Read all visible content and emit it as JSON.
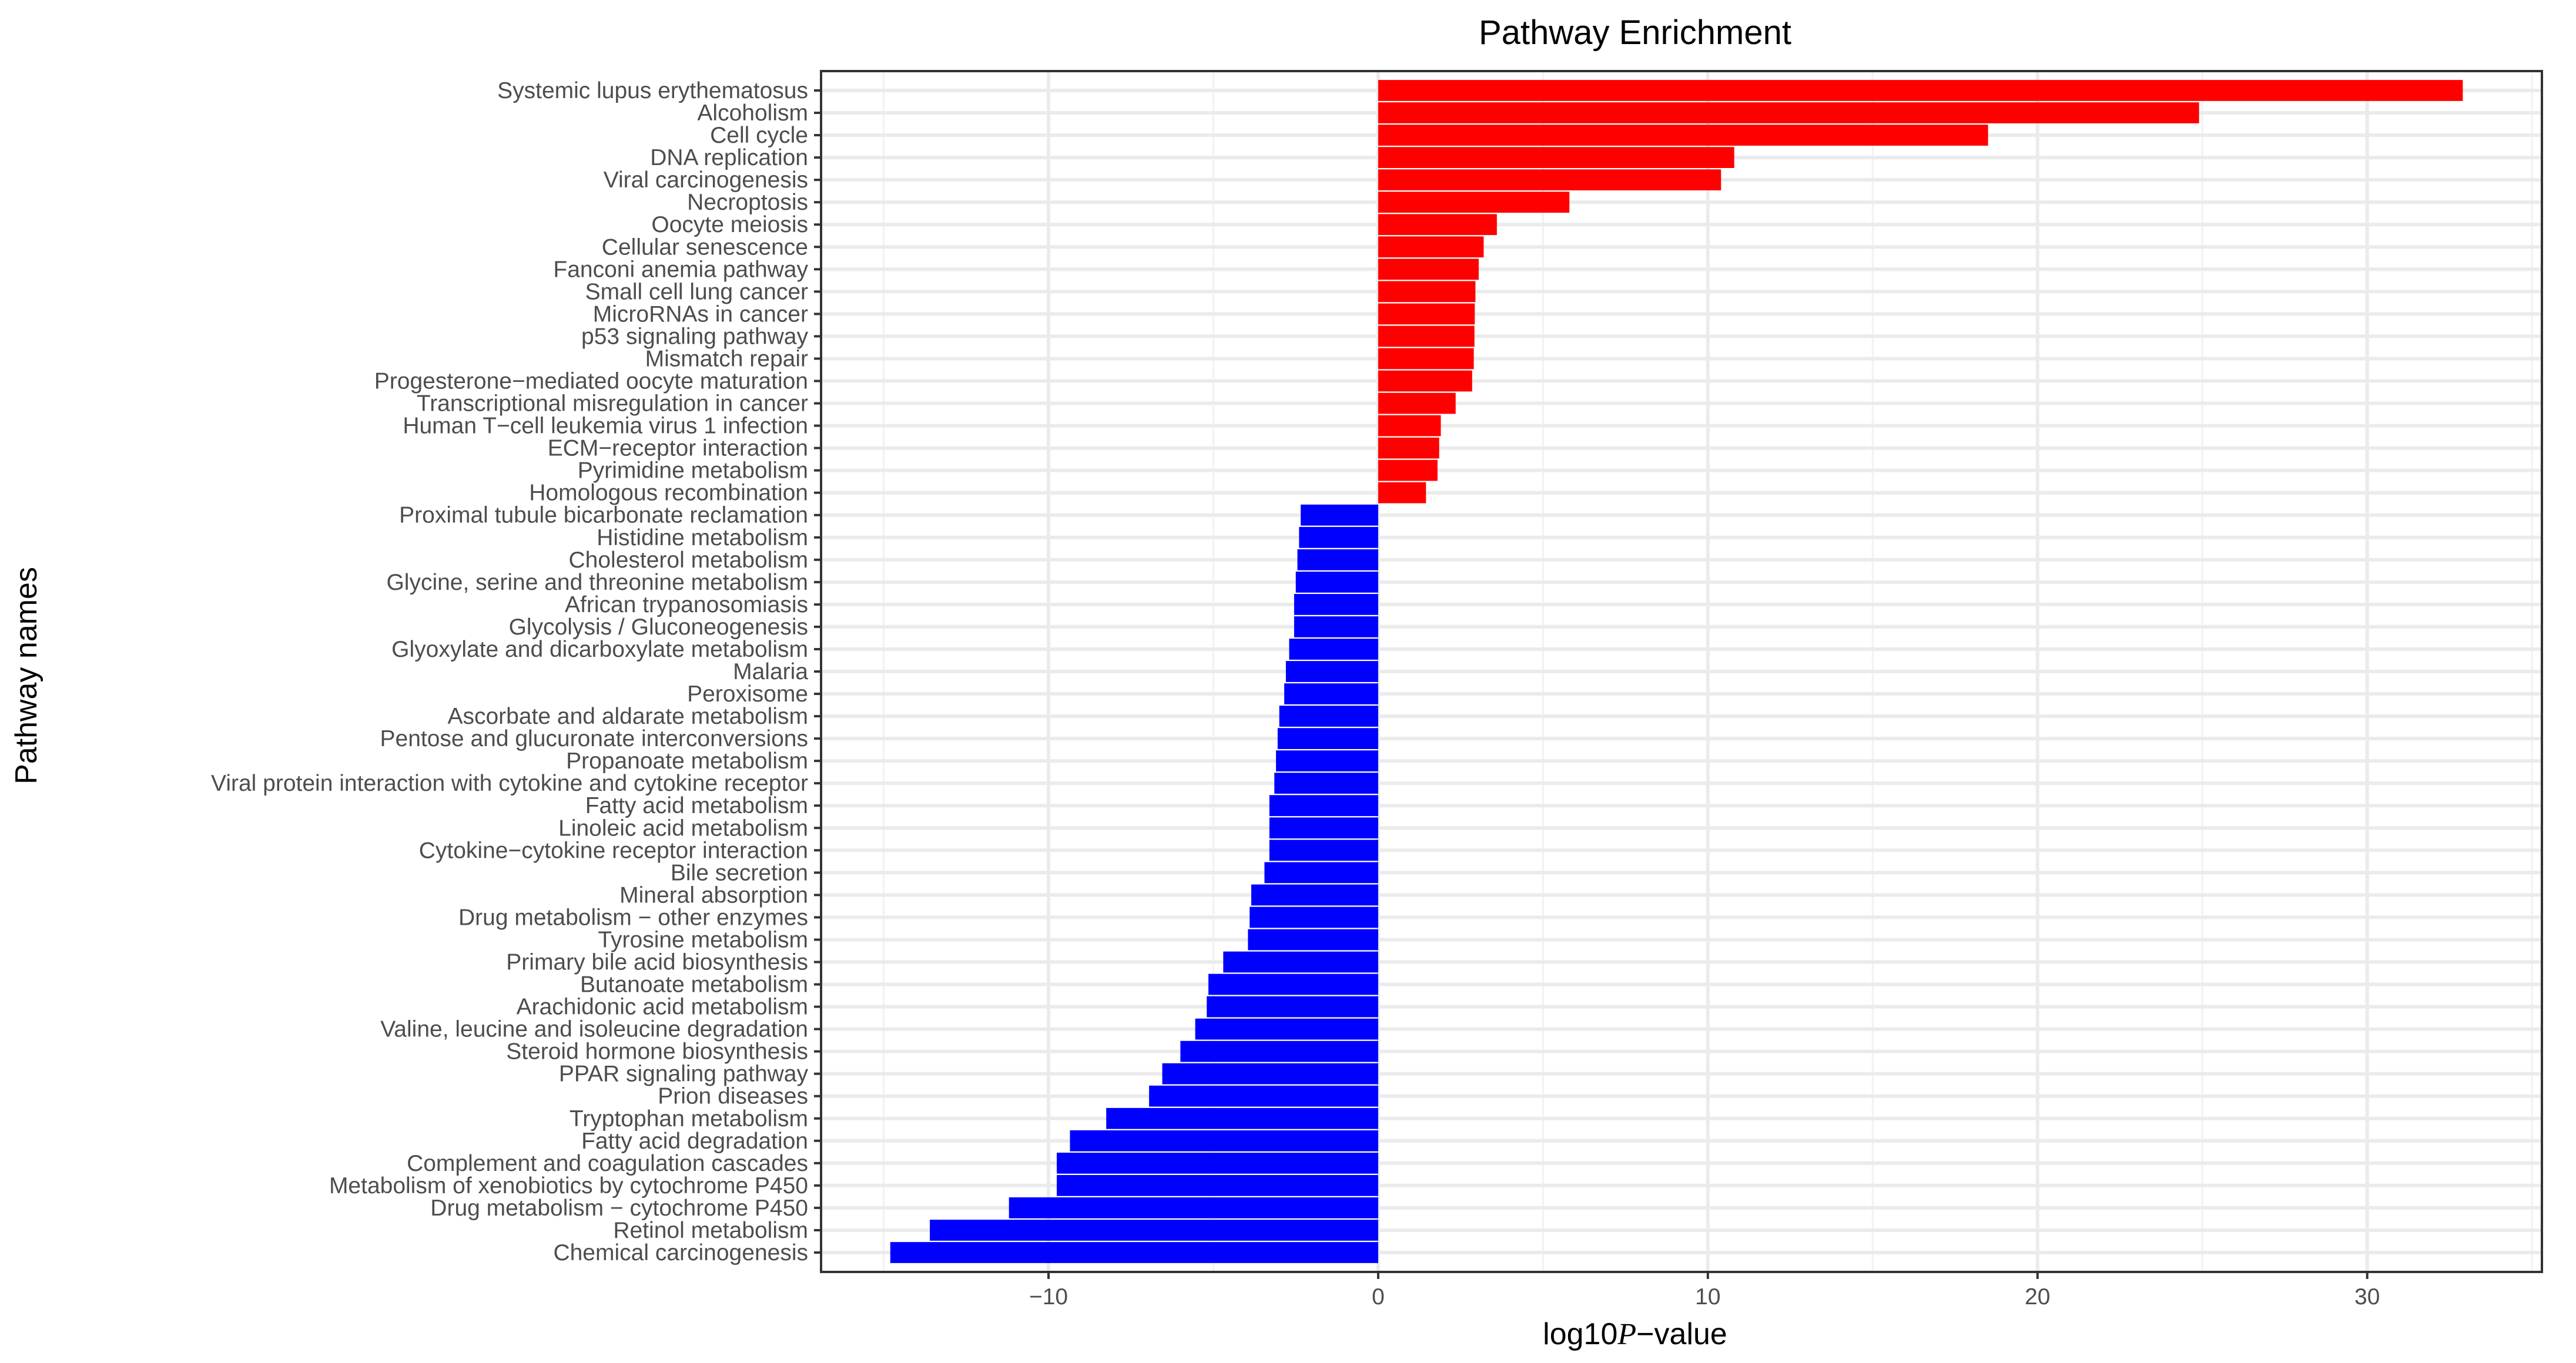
{
  "chart_data": {
    "type": "bar",
    "orientation": "horizontal",
    "title": "Pathway Enrichment",
    "xlabel_prefix": "log10",
    "xlabel_italic": "P",
    "xlabel_suffix": "−value",
    "ylabel": "Pathway names",
    "xlim": [
      -16.9,
      35.3
    ],
    "xticks": [
      -10,
      0,
      10,
      20,
      30
    ],
    "xtick_labels": [
      "−10",
      "0",
      "10",
      "20",
      "30"
    ],
    "grid": true,
    "colors": {
      "positive": "#ff0000",
      "negative": "#0000ff"
    },
    "categories": [
      "Systemic lupus erythematosus",
      "Alcoholism",
      "Cell cycle",
      "DNA replication",
      "Viral carcinogenesis",
      "Necroptosis",
      "Oocyte meiosis",
      "Cellular senescence",
      "Fanconi anemia pathway",
      "Small cell lung cancer",
      "MicroRNAs in cancer",
      "p53 signaling pathway",
      "Mismatch repair",
      "Progesterone−mediated oocyte maturation",
      "Transcriptional misregulation in cancer",
      "Human T−cell leukemia virus 1 infection",
      "ECM−receptor interaction",
      "Pyrimidine metabolism",
      "Homologous recombination",
      "Proximal tubule bicarbonate reclamation",
      "Histidine metabolism",
      "Cholesterol metabolism",
      "Glycine, serine and threonine metabolism",
      "African trypanosomiasis",
      "Glycolysis / Gluconeogenesis",
      "Glyoxylate and dicarboxylate metabolism",
      "Malaria",
      "Peroxisome",
      "Ascorbate and aldarate metabolism",
      "Pentose and glucuronate interconversions",
      "Propanoate metabolism",
      "Viral protein interaction with cytokine and cytokine receptor",
      "Fatty acid metabolism",
      "Linoleic acid metabolism",
      "Cytokine−cytokine receptor interaction",
      "Bile secretion",
      "Mineral absorption",
      "Drug metabolism − other enzymes",
      "Tyrosine metabolism",
      "Primary bile acid biosynthesis",
      "Butanoate metabolism",
      "Arachidonic acid metabolism",
      "Valine, leucine and isoleucine degradation",
      "Steroid hormone biosynthesis",
      "PPAR signaling pathway",
      "Prion diseases",
      "Tryptophan metabolism",
      "Fatty acid degradation",
      "Complement and coagulation cascades",
      "Metabolism of xenobiotics by cytochrome P450",
      "Drug metabolism − cytochrome P450",
      "Retinol metabolism",
      "Chemical carcinogenesis"
    ],
    "values": [
      32.9,
      24.9,
      18.5,
      10.8,
      10.4,
      5.8,
      3.6,
      3.2,
      3.05,
      2.95,
      2.93,
      2.92,
      2.9,
      2.85,
      2.35,
      1.9,
      1.85,
      1.8,
      1.45,
      -2.35,
      -2.4,
      -2.45,
      -2.5,
      -2.55,
      -2.55,
      -2.7,
      -2.8,
      -2.85,
      -3.0,
      -3.05,
      -3.1,
      -3.15,
      -3.3,
      -3.3,
      -3.3,
      -3.45,
      -3.85,
      -3.9,
      -3.95,
      -4.7,
      -5.15,
      -5.2,
      -5.55,
      -6.0,
      -6.55,
      -6.95,
      -8.25,
      -9.35,
      -9.75,
      -9.75,
      -11.2,
      -13.6,
      -14.8
    ]
  }
}
